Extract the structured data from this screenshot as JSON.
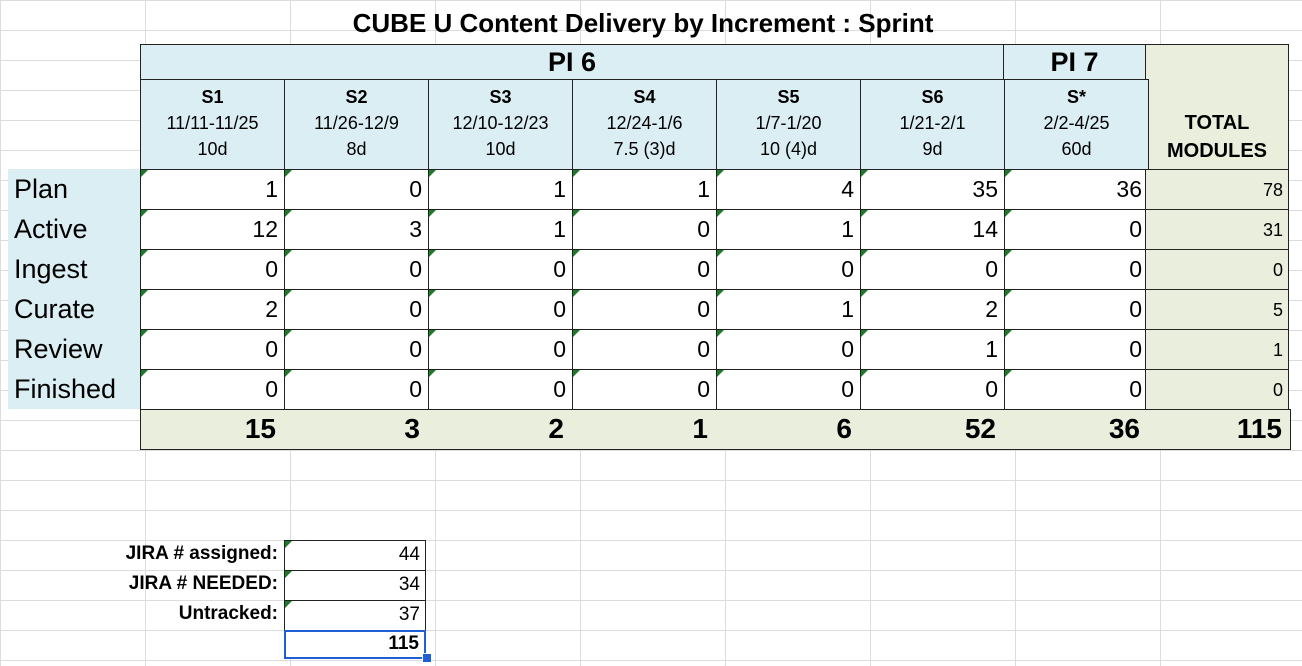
{
  "sheet": {
    "title": "CUBE U Content Delivery by Increment : Sprint",
    "pi_headers": [
      "PI 6",
      "PI 7"
    ],
    "sprints": [
      {
        "name": "S1",
        "dates": "11/11-11/25",
        "days": "10d"
      },
      {
        "name": "S2",
        "dates": "11/26-12/9",
        "days": "8d"
      },
      {
        "name": "S3",
        "dates": "12/10-12/23",
        "days": "10d"
      },
      {
        "name": "S4",
        "dates": "12/24-1/6",
        "days": "7.5 (3)d"
      },
      {
        "name": "S5",
        "dates": "1/7-1/20",
        "days": "10 (4)d"
      },
      {
        "name": "S6",
        "dates": "1/21-2/1",
        "days": "9d"
      },
      {
        "name": "S*",
        "dates": "2/2-4/25",
        "days": "60d"
      }
    ],
    "total_header_line1": "TOTAL",
    "total_header_line2": "MODULES",
    "rows": [
      {
        "label": "Plan",
        "values": [
          "1",
          "0",
          "1",
          "1",
          "4",
          "35",
          "36"
        ],
        "total": "78"
      },
      {
        "label": "Active",
        "values": [
          "12",
          "3",
          "1",
          "0",
          "1",
          "14",
          "0"
        ],
        "total": "31"
      },
      {
        "label": "Ingest",
        "values": [
          "0",
          "0",
          "0",
          "0",
          "0",
          "0",
          "0"
        ],
        "total": "0"
      },
      {
        "label": "Curate",
        "values": [
          "2",
          "0",
          "0",
          "0",
          "1",
          "2",
          "0"
        ],
        "total": "5"
      },
      {
        "label": "Review",
        "values": [
          "0",
          "0",
          "0",
          "0",
          "0",
          "1",
          "0"
        ],
        "total": "1"
      },
      {
        "label": "Finished",
        "values": [
          "0",
          "0",
          "0",
          "0",
          "0",
          "0",
          "0"
        ],
        "total": "0"
      }
    ],
    "sums": [
      "15",
      "3",
      "2",
      "1",
      "6",
      "52",
      "36",
      "115"
    ],
    "jira": [
      {
        "label": "JIRA # assigned:",
        "value": "44"
      },
      {
        "label": "JIRA # NEEDED:",
        "value": "34"
      },
      {
        "label": "Untracked:",
        "value": "37"
      }
    ],
    "jira_total": "115"
  },
  "colors": {
    "header_blue": "#dbeef4",
    "total_green": "#e9efdc",
    "selection": "#1f5fd6",
    "comment_marker": "#1c7a2a"
  }
}
